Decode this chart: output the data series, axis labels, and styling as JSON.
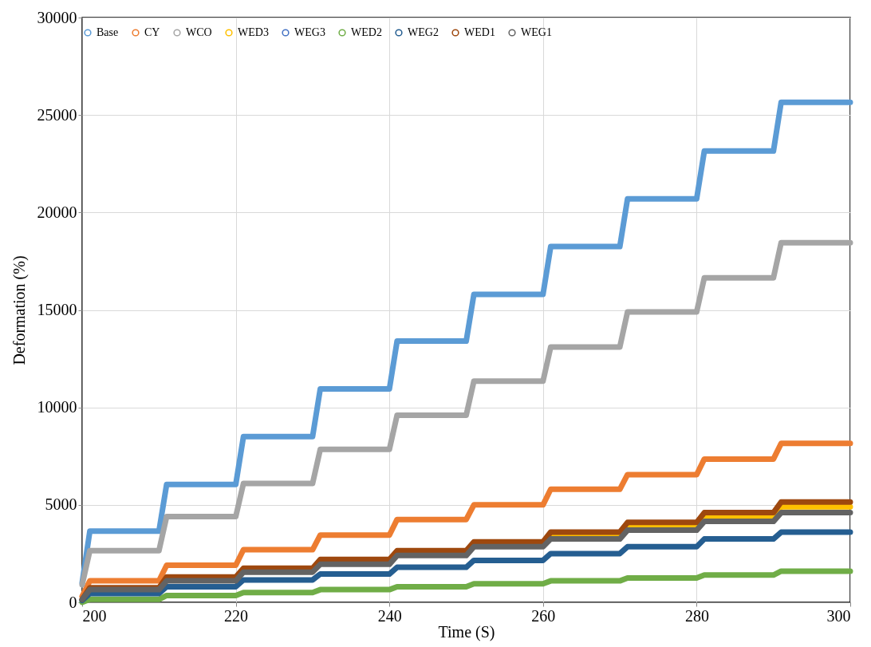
{
  "chart_data": {
    "type": "line",
    "xlabel": "Time (S)",
    "ylabel": "Deformation (%)",
    "x": [
      200,
      201,
      210,
      211,
      220,
      221,
      230,
      231,
      240,
      241,
      250,
      251,
      260,
      261,
      270,
      271,
      280,
      281,
      290,
      291,
      300
    ],
    "xlim": [
      200,
      300
    ],
    "xticks": [
      200,
      220,
      240,
      260,
      280,
      300
    ],
    "ylim": [
      0,
      30000
    ],
    "yticks": [
      0,
      5000,
      10000,
      15000,
      20000,
      25000,
      30000
    ],
    "grid": true,
    "legend": "top",
    "line_style": "solid",
    "series": [
      {
        "name": "Base",
        "color": "#5b9bd5",
        "values": [
          1000,
          3650,
          3650,
          6050,
          6050,
          8500,
          8500,
          10950,
          10950,
          13400,
          13400,
          15800,
          15800,
          18250,
          18250,
          20700,
          20700,
          23150,
          23150,
          25650,
          25650
        ]
      },
      {
        "name": "CY",
        "color": "#ed7d31",
        "values": [
          300,
          1100,
          1100,
          1900,
          1900,
          2700,
          2700,
          3450,
          3450,
          4250,
          4250,
          5000,
          5000,
          5800,
          5800,
          6550,
          6550,
          7350,
          7350,
          8150,
          8150
        ]
      },
      {
        "name": "WCO",
        "color": "#a5a5a5",
        "values": [
          900,
          2650,
          2650,
          4400,
          4400,
          6100,
          6100,
          7850,
          7850,
          9600,
          9600,
          11350,
          11350,
          13100,
          13100,
          14900,
          14900,
          16650,
          16650,
          18450,
          18450
        ]
      },
      {
        "name": "WED3",
        "color": "#ffc000",
        "values": [
          null,
          null,
          null,
          null,
          null,
          null,
          null,
          null,
          null,
          null,
          null,
          null,
          null,
          3450,
          3450,
          3950,
          3950,
          4400,
          4400,
          4900,
          4900
        ]
      },
      {
        "name": "WEG3",
        "color": "#4472c4",
        "values": [
          null,
          null,
          null,
          null,
          null,
          null,
          null,
          null,
          null,
          null,
          null,
          null,
          null,
          null,
          null,
          null,
          null,
          null,
          null,
          null,
          null
        ]
      },
      {
        "name": "WED2",
        "color": "#70ad47",
        "values": [
          0,
          150,
          150,
          350,
          350,
          500,
          500,
          650,
          650,
          800,
          800,
          950,
          950,
          1100,
          1100,
          1250,
          1250,
          1400,
          1400,
          1600,
          1600
        ]
      },
      {
        "name": "WEG2",
        "color": "#255e91",
        "values": [
          100,
          450,
          450,
          800,
          800,
          1150,
          1150,
          1450,
          1450,
          1800,
          1800,
          2150,
          2150,
          2500,
          2500,
          2850,
          2850,
          3250,
          3250,
          3600,
          3600
        ]
      },
      {
        "name": "WED1",
        "color": "#9e480e",
        "values": [
          150,
          750,
          750,
          1300,
          1300,
          1750,
          1750,
          2200,
          2200,
          2650,
          2650,
          3100,
          3100,
          3600,
          3600,
          4100,
          4100,
          4600,
          4600,
          5150,
          5150
        ]
      },
      {
        "name": "WEG1",
        "color": "#636363",
        "values": [
          150,
          650,
          650,
          1100,
          1100,
          1550,
          1550,
          1950,
          1950,
          2400,
          2400,
          2850,
          2850,
          3250,
          3250,
          3700,
          3700,
          4150,
          4150,
          4600,
          4600
        ]
      }
    ]
  }
}
